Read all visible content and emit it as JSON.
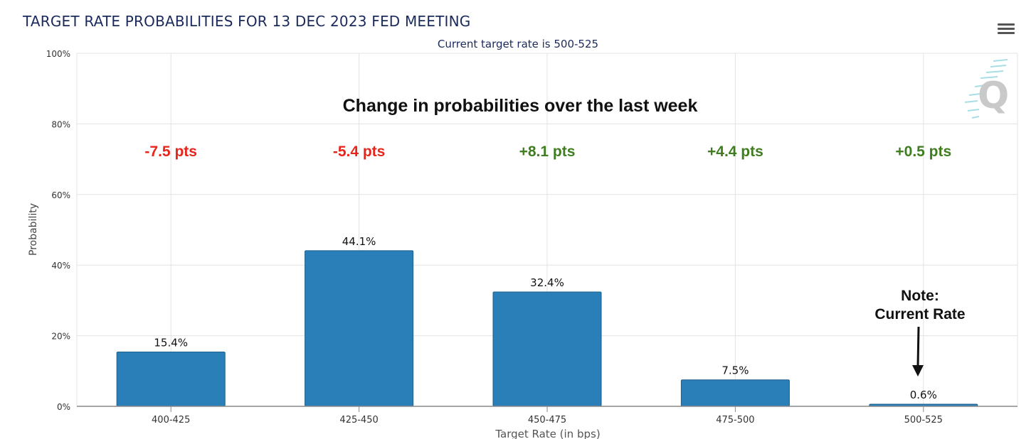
{
  "header": {
    "title": "TARGET RATE PROBABILITIES FOR 13 DEC 2023 FED MEETING",
    "subtitle": "Current target rate is 500-525"
  },
  "menu": {
    "icon": "hamburger-menu-icon"
  },
  "watermark": {
    "letter": "Q",
    "icon": "cme-fedwatch-logo"
  },
  "colors": {
    "bar": "#2a7fb8",
    "bar_stroke": "#1c5f8c",
    "negative": "#e8251b",
    "positive": "#3f7d20",
    "grid": "#e3e3e3",
    "text": "#1b2a5c"
  },
  "annotations": {
    "headline": "Change in probabilities over the last week",
    "changes": [
      "-7.5 pts",
      "-5.4 pts",
      "+8.1 pts",
      "+4.4 pts",
      "+0.5 pts"
    ],
    "change_signs": [
      "negative",
      "negative",
      "positive",
      "positive",
      "positive"
    ],
    "note_line1": "Note:",
    "note_line2": "Current Rate",
    "note_target": "500-525"
  },
  "chart_data": {
    "type": "bar",
    "title": "TARGET RATE PROBABILITIES FOR 13 DEC 2023 FED MEETING",
    "subtitle": "Current target rate is 500-525",
    "xlabel": "Target Rate (in bps)",
    "ylabel": "Probability",
    "categories": [
      "400-425",
      "425-450",
      "450-475",
      "475-500",
      "500-525"
    ],
    "values": [
      15.4,
      44.1,
      32.4,
      7.5,
      0.6
    ],
    "data_labels": [
      "15.4%",
      "44.1%",
      "32.4%",
      "7.5%",
      "0.6%"
    ],
    "ylim": [
      0,
      100
    ],
    "yticks": [
      0,
      20,
      40,
      60,
      80,
      100
    ],
    "ytick_labels": [
      "0%",
      "20%",
      "40%",
      "60%",
      "80%",
      "100%"
    ],
    "grid": true,
    "legend": "none"
  }
}
